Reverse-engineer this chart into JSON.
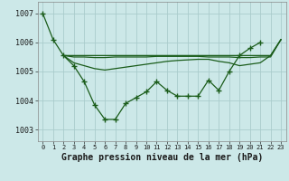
{
  "title": "Graphe pression niveau de la mer (hPa)",
  "bg_color": "#cce8e8",
  "grid_color": "#aacccc",
  "line_color": "#1a5c1a",
  "hours": [
    0,
    1,
    2,
    3,
    4,
    5,
    6,
    7,
    8,
    9,
    10,
    11,
    12,
    13,
    14,
    15,
    16,
    17,
    18,
    19,
    20,
    21,
    22,
    23
  ],
  "x_labels": [
    "0",
    "1",
    "2",
    "3",
    "4",
    "5",
    "6",
    "7",
    "8",
    "9",
    "10",
    "11",
    "12",
    "13",
    "14",
    "15",
    "16",
    "17",
    "18",
    "19",
    "20",
    "21",
    "22",
    "23"
  ],
  "series_main": [
    1007.0,
    1006.1,
    1005.55,
    1005.2,
    1004.65,
    1003.85,
    1003.35,
    1003.35,
    1003.9,
    1004.1,
    1004.3,
    1004.65,
    1004.35,
    1004.15,
    1004.15,
    1004.15,
    1004.7,
    1004.35,
    1005.0,
    1005.55,
    1005.8,
    1006.0,
    null,
    null
  ],
  "series_flat1": [
    null,
    null,
    1005.55,
    1005.55,
    1005.55,
    1005.55,
    1005.55,
    1005.55,
    1005.55,
    1005.55,
    1005.55,
    1005.55,
    1005.55,
    1005.55,
    1005.55,
    1005.55,
    1005.55,
    1005.55,
    1005.55,
    1005.55,
    1005.55,
    1005.55,
    1005.55,
    1006.1
  ],
  "series_flat2": [
    null,
    null,
    1005.55,
    1005.5,
    1005.5,
    1005.48,
    1005.48,
    1005.5,
    1005.5,
    1005.5,
    1005.5,
    1005.52,
    1005.52,
    1005.52,
    1005.52,
    1005.52,
    1005.5,
    1005.5,
    1005.5,
    1005.48,
    1005.48,
    1005.5,
    1005.5,
    1006.1
  ],
  "series_curved": [
    null,
    null,
    1005.55,
    1005.3,
    1005.2,
    1005.1,
    1005.05,
    1005.1,
    1005.15,
    1005.2,
    1005.25,
    1005.3,
    1005.35,
    1005.38,
    1005.4,
    1005.42,
    1005.42,
    1005.35,
    1005.3,
    1005.2,
    1005.25,
    1005.3,
    1005.55,
    1006.1
  ],
  "ylim": [
    1002.6,
    1007.4
  ],
  "yticks": [
    1003,
    1004,
    1005,
    1006,
    1007
  ],
  "figsize": [
    3.2,
    2.0
  ],
  "dpi": 100
}
